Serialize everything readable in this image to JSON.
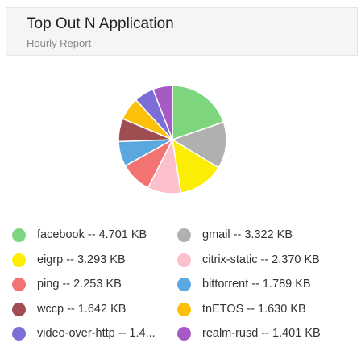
{
  "header": {
    "title": "Top Out N Application",
    "subtitle": "Hourly Report"
  },
  "chart_data": {
    "type": "pie",
    "title": "Top Out N Application",
    "subtitle": "Hourly Report",
    "unit": "KB",
    "legend_position": "bottom",
    "slices": [
      {
        "label": "facebook",
        "value": 4.701,
        "display": "facebook -- 4.701 KB",
        "color": "#7dd67d"
      },
      {
        "label": "gmail",
        "value": 3.322,
        "display": "gmail -- 3.322 KB",
        "color": "#b0b0b0"
      },
      {
        "label": "eigrp",
        "value": 3.293,
        "display": "eigrp -- 3.293 KB",
        "color": "#fbee04"
      },
      {
        "label": "citrix-static",
        "value": 2.37,
        "display": "citrix-static -- 2.370 KB",
        "color": "#fdbfcc"
      },
      {
        "label": "ping",
        "value": 2.253,
        "display": "ping -- 2.253 KB",
        "color": "#f37373"
      },
      {
        "label": "bittorrent",
        "value": 1.789,
        "display": "bittorrent -- 1.789 KB",
        "color": "#5ba8e0"
      },
      {
        "label": "wccp",
        "value": 1.642,
        "display": "wccp -- 1.642 KB",
        "color": "#a04d52"
      },
      {
        "label": "tnETOS",
        "value": 1.63,
        "display": "tnETOS -- 1.630 KB",
        "color": "#fcc00b"
      },
      {
        "label": "video-over-http",
        "value": 1.415,
        "display": "video-over-http -- 1.4...",
        "color": "#7b6fd7"
      },
      {
        "label": "realm-rusd",
        "value": 1.401,
        "display": "realm-rusd -- 1.401 KB",
        "color": "#a85ac4"
      }
    ]
  }
}
